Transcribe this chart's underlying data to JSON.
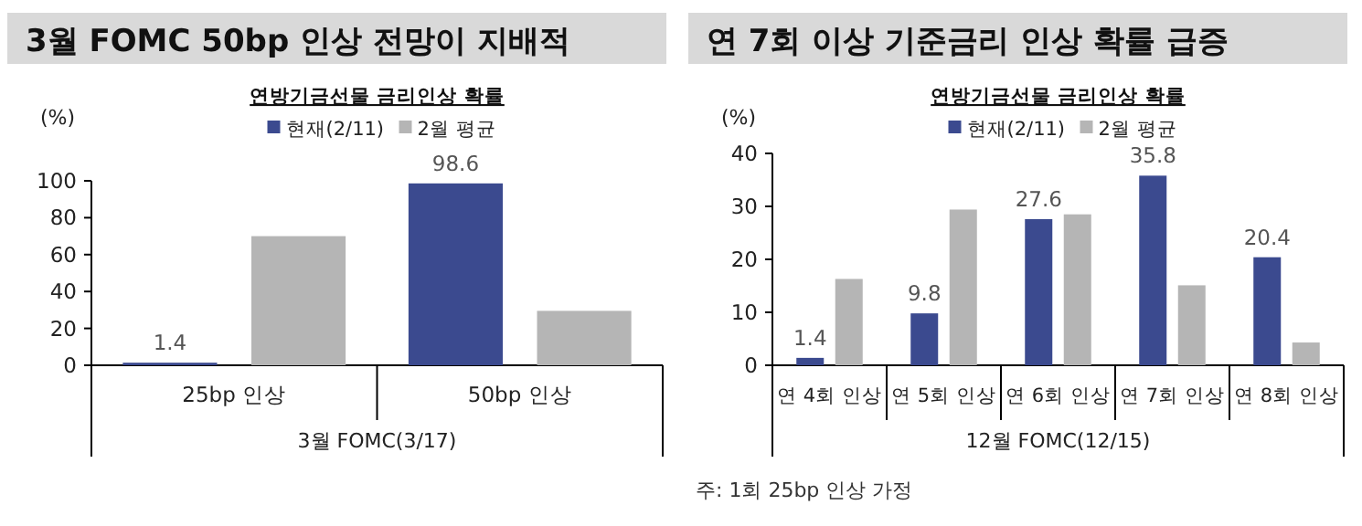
{
  "chart_data": [
    {
      "type": "bar",
      "title": "3월 FOMC 50bp 인상 전망이 지배적",
      "subtitle": "연방기금선물 금리인상 확률",
      "ylabel": "(%)",
      "xlabel": "3월 FOMC(3/17)",
      "categories": [
        "25bp 인상",
        "50bp 인상"
      ],
      "ylim": [
        0,
        100
      ],
      "yticks": [
        0,
        20,
        40,
        60,
        80,
        100
      ],
      "legend": "top",
      "series": [
        {
          "name": "현재(2/11)",
          "color": "#3b4a8f",
          "values": [
            1.4,
            98.6
          ],
          "value_labels": [
            "1.4",
            "98.6"
          ]
        },
        {
          "name": "2월 평균",
          "color": "#b5b5b5",
          "values": [
            70,
            29.5
          ]
        }
      ]
    },
    {
      "type": "bar",
      "title": "연 7회 이상 기준금리 인상 확률 급증",
      "subtitle": "연방기금선물 금리인상 확률",
      "ylabel": "(%)",
      "xlabel": "12월 FOMC(12/15)",
      "annotations": [
        "주: 1회 25bp 인상 가정"
      ],
      "categories": [
        "연 4회 인상",
        "연 5회 인상",
        "연 6회 인상",
        "연 7회 인상",
        "연 8회 인상"
      ],
      "ylim": [
        0,
        40
      ],
      "yticks": [
        0,
        10,
        20,
        30,
        40
      ],
      "legend": "top",
      "series": [
        {
          "name": "현재(2/11)",
          "color": "#3b4a8f",
          "values": [
            1.4,
            9.8,
            27.6,
            35.8,
            20.4
          ],
          "value_labels": [
            "1.4",
            "9.8",
            "27.6",
            "35.8",
            "20.4"
          ]
        },
        {
          "name": "2월 평균",
          "color": "#b5b5b5",
          "values": [
            16.3,
            29.4,
            28.5,
            15.1,
            4.3
          ]
        }
      ]
    }
  ]
}
